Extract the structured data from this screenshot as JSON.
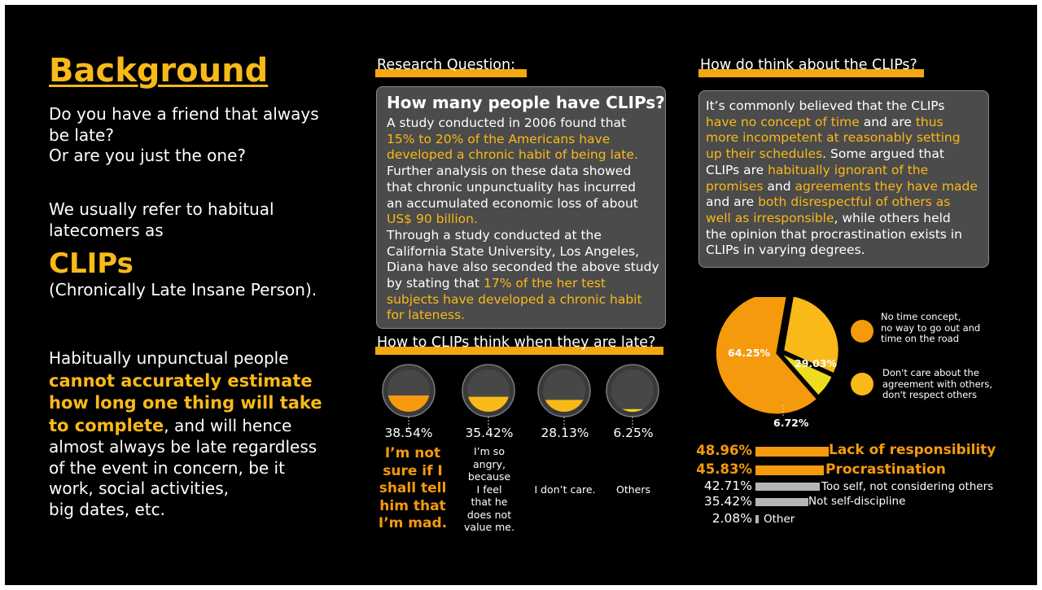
{
  "background": {
    "title": "Background",
    "q1": "Do you have a friend that always",
    "q2": "be late?",
    "q3": "Or are you just the one?",
    "refer1": "We usually refer to habitual",
    "refer2": "latecomers as",
    "clips": "CLIPs",
    "clips_full": "(Chronically Late Insane Person).",
    "habit_intro": "Habitually unpunctual people",
    "habit_b1": "cannot accurately estimate",
    "habit_b2": "how long one thing will take",
    "habit_b3": "to complete",
    "habit_after3": ", and will hence",
    "habit_l4": "almost always be late regardless",
    "habit_l5": "of the event in concern, be it",
    "habit_l6": "work, social activities,",
    "habit_l7": "big dates, etc."
  },
  "research": {
    "header": "Research Question:",
    "title": "How many people have CLIPs?",
    "l1": "A study conducted in 2006 found that",
    "l2": "15% to 20% of the Americans have",
    "l3": "developed a chronic habit of being late.",
    "l4": "Further analysis on these data showed",
    "l5": "that chronic unpunctuality has incurred",
    "l6": "an accumulated economic loss of about",
    "l7": "US$ 90 billion.",
    "l8": "Through a study conducted at the",
    "l9": "California State University, Los Angeles,",
    "l10": "Diana have also seconded the above study",
    "l11a": "by stating that ",
    "l11b": "17% of the her test",
    "l12": "subjects have  developed a chronic habit",
    "l13": "for lateness."
  },
  "think": {
    "header": "How do think about the CLIPs?",
    "l1": "It’s commonly believed that the CLIPs",
    "l2a": "have no concept of time",
    "l2b": " and are ",
    "l2c": "thus",
    "l3": "more incompetent at reasonably setting",
    "l4a": "up their schedules",
    "l4b": ". Some argued that",
    "l5a": "CLIPs are ",
    "l5b": "habitually ignorant of the",
    "l6a": "promises",
    "l6b": " and ",
    "l6c": "agreements they have made",
    "l7a": "and are ",
    "l7b": "both disrespectful of others as",
    "l8a": "well as irresponsible",
    "l8b": ", while others held",
    "l9": "the opinion that procrastination exists in",
    "l10": "CLIPs in varying degrees."
  },
  "late_header": "How to CLIPs think when they are late?",
  "colors": {
    "yellow": "#f9b918",
    "orange": "#f59a0c",
    "gray": "#b5b5b5",
    "card": "#4b4b4b"
  },
  "chart_data": [
    {
      "type": "gauge",
      "title": "How to CLIPs think when they are late?",
      "items": [
        {
          "value": 38.54,
          "label": "38.54%",
          "text": [
            "I’m not",
            "sure if I",
            "shall tell",
            "him that",
            "I’m mad."
          ]
        },
        {
          "value": 35.42,
          "label": "35.42%",
          "text": [
            "I’m so",
            "angry,",
            "because",
            "I feel",
            "that he",
            "does not",
            "value me."
          ]
        },
        {
          "value": 28.13,
          "label": "28.13%",
          "text": [
            "I don’t care."
          ]
        },
        {
          "value": 6.25,
          "label": "6.25%",
          "text": [
            "Others"
          ]
        }
      ]
    },
    {
      "type": "pie",
      "slices": [
        {
          "value": 64.25,
          "label": "64.25%",
          "color": "#f59a0c"
        },
        {
          "value": 29.03,
          "label": "29.03%",
          "color": "#f9b918"
        },
        {
          "value": 6.72,
          "label": "6.72%",
          "color": "#f0dc1e"
        }
      ],
      "legend": [
        {
          "lines": [
            "No time concept,",
            "no way to go out and",
            "time on the road"
          ],
          "color": "#f59a0c"
        },
        {
          "lines": [
            "Don't care about the",
            "agreement with others,",
            "don't respect others"
          ],
          "color": "#f9b918"
        }
      ]
    },
    {
      "type": "bar",
      "orientation": "horizontal",
      "categories": [
        "Lack of responsibility",
        "Procrastination",
        "Too self, not considering others",
        "Not self-discipline",
        "Other"
      ],
      "values": [
        48.96,
        45.83,
        42.71,
        35.42,
        2.08
      ],
      "labels": [
        "48.96%",
        "45.83%",
        "42.71%",
        "35.42%",
        "2.08%"
      ],
      "colors": [
        "#f59a0c",
        "#f59a0c",
        "#b5b5b5",
        "#b5b5b5",
        "#b5b5b5"
      ]
    }
  ]
}
